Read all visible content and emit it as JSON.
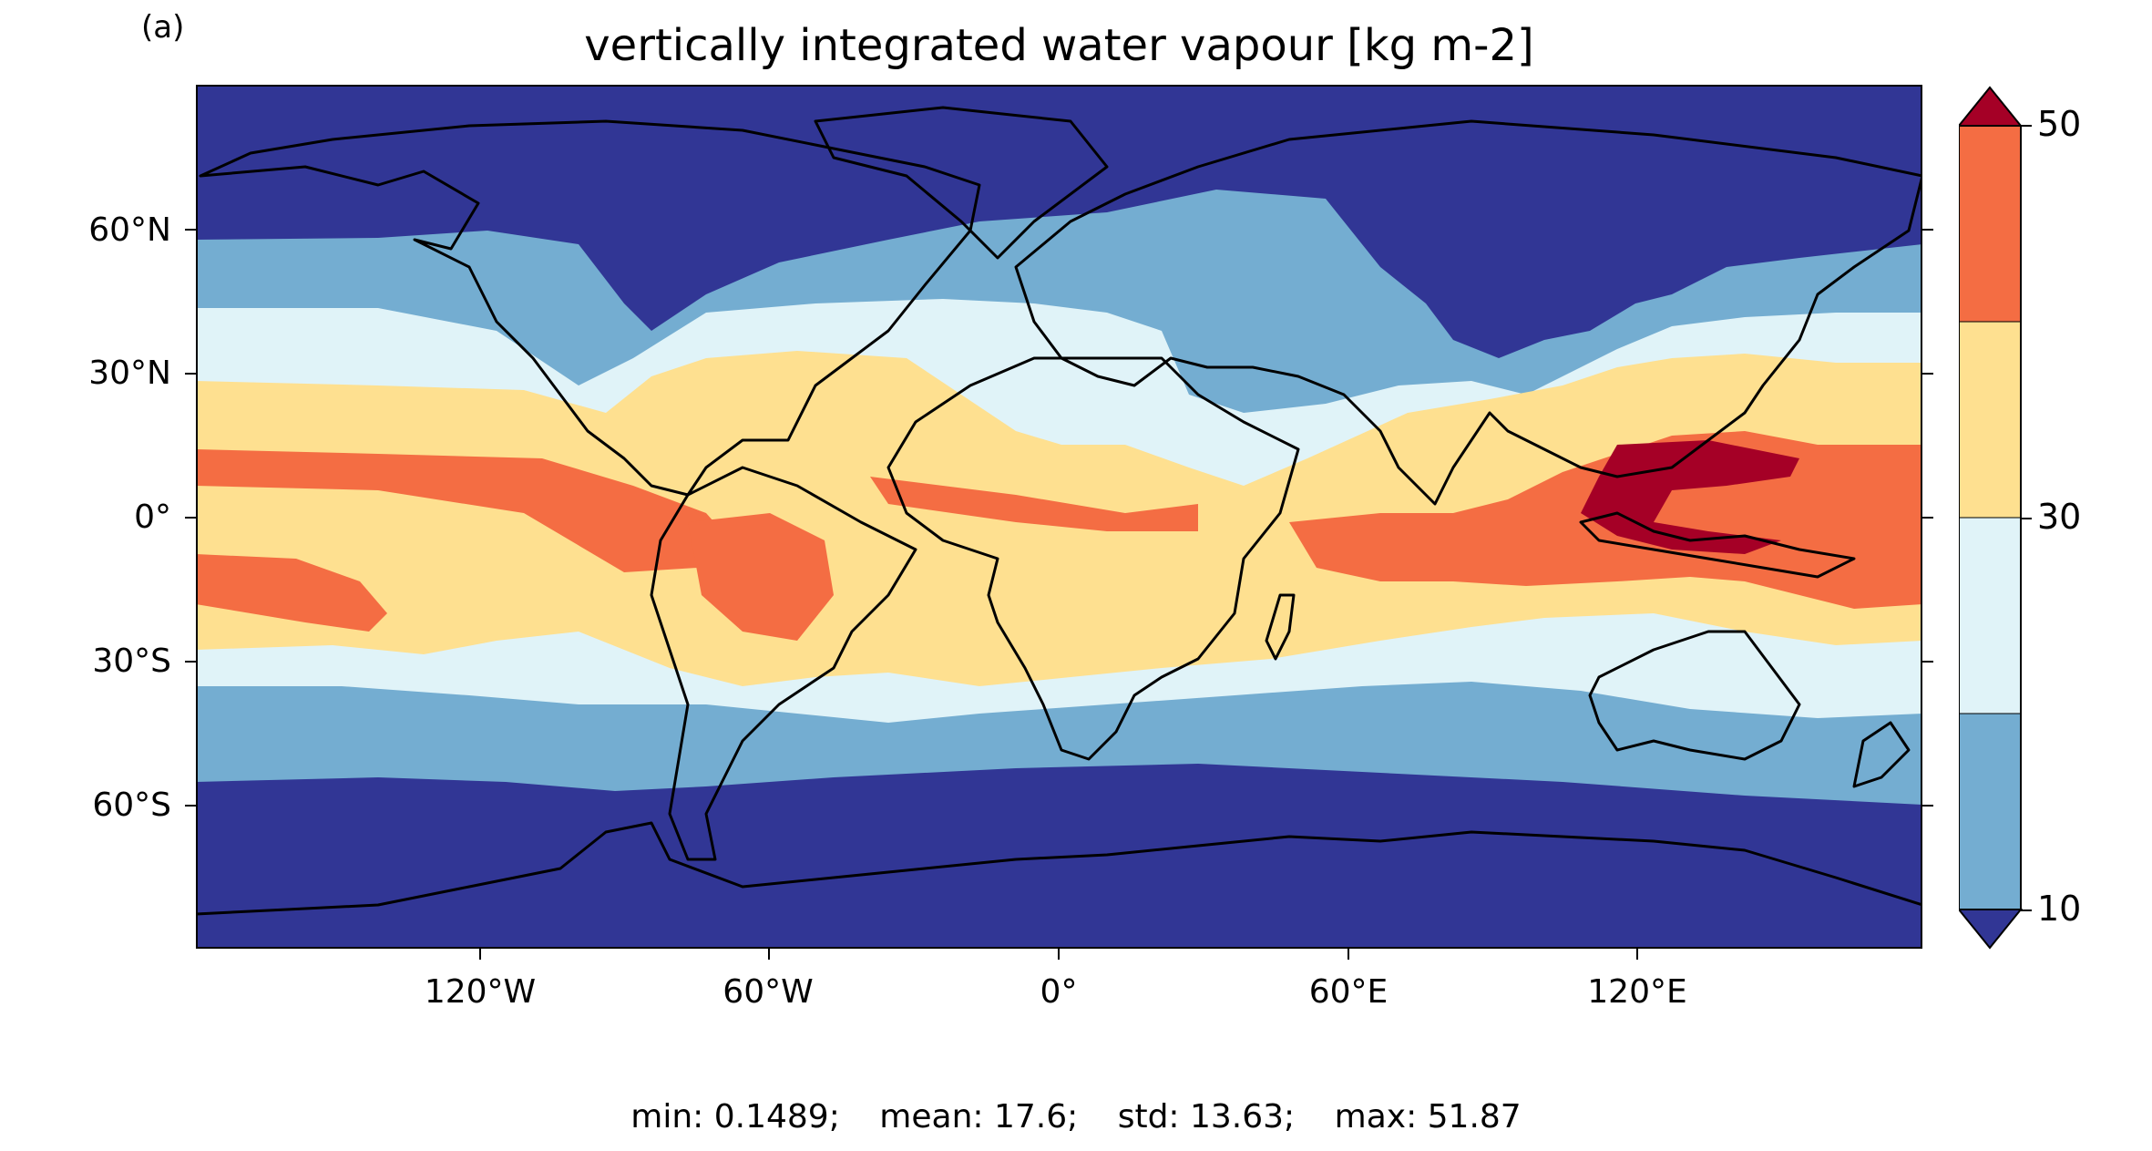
{
  "panel_label": "(a)",
  "title": "vertically integrated water vapour [kg m-2]",
  "y_labels": [
    "60°N",
    "30°N",
    "0°",
    "30°S",
    "60°S"
  ],
  "x_labels": [
    "120°W",
    "60°W",
    "0°",
    "60°E",
    "120°E"
  ],
  "colorbar": {
    "labels": [
      "50",
      "30",
      "10"
    ],
    "colors": [
      "#a50026",
      "#f46d43",
      "#fee090",
      "#e0f3f8",
      "#74add1",
      "#313695"
    ]
  },
  "stats": {
    "min": "min: 0.1489;",
    "mean": "mean: 17.6;",
    "std": "std: 13.63;",
    "max": "max: 51.87"
  }
}
